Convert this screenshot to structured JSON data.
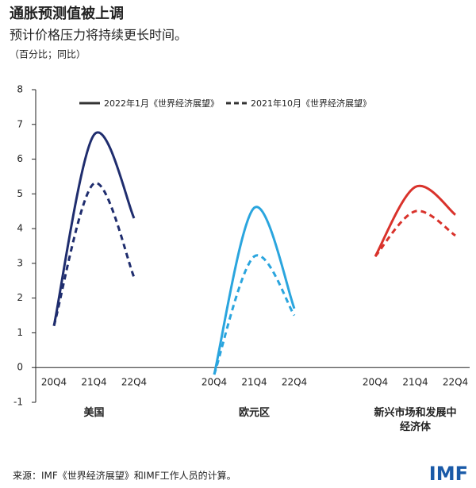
{
  "chart_data": {
    "type": "line",
    "title": "通胀预测值被上调",
    "subtitle": "预计价格压力将持续更长时间。",
    "note": "（百分比；同比）",
    "source": "来源：IMF《世界经济展望》和IMF工作人员的计算。",
    "logo": "IMF",
    "categories": [
      "20Q4",
      "21Q4",
      "22Q4"
    ],
    "groups": [
      {
        "name": "美国",
        "color": "#1f2d6e"
      },
      {
        "name": "欧元区",
        "color": "#2aa5de"
      },
      {
        "name": "新兴市场和发展中经济体",
        "color": "#d9322b"
      }
    ],
    "series": [
      {
        "name": "2022年1月《世界经济展望》",
        "dashed": false,
        "values": [
          [
            1.2,
            6.7,
            4.3
          ],
          [
            -0.2,
            4.6,
            1.7
          ],
          [
            3.2,
            5.2,
            4.4
          ]
        ]
      },
      {
        "name": "2021年10月《世界经济展望》",
        "dashed": true,
        "values": [
          [
            1.2,
            5.3,
            2.6
          ],
          [
            -0.2,
            3.2,
            1.5
          ],
          [
            3.2,
            4.5,
            3.8
          ]
        ]
      }
    ],
    "ylim": [
      -1,
      8
    ],
    "yticks": [
      -1,
      0,
      1,
      2,
      3,
      4,
      5,
      6,
      7,
      8
    ]
  }
}
